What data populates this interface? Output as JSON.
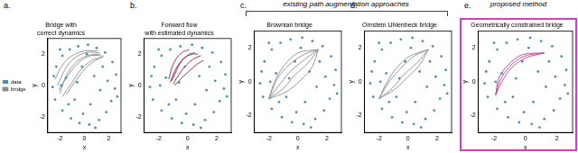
{
  "chart_data": [
    {
      "type": "scatter",
      "annotations": [
        "a."
      ],
      "title": [
        "Bridge with",
        "correct dynamics"
      ],
      "xlabel": "x",
      "ylabel": "y",
      "xlim": [
        -3,
        3
      ],
      "ylim": [
        -3,
        3
      ],
      "xticks": [
        -2,
        0,
        2
      ],
      "yticks": [
        -2,
        0,
        2
      ],
      "grid": false,
      "legend": "left",
      "series": [
        {
          "name": "data",
          "type": "scatter",
          "marker": "circle",
          "color": "#4a8fb8",
          "x": [
            -2.3,
            -1.8,
            -1.2,
            -0.5,
            0.3,
            1.0,
            1.7,
            2.3,
            2.6,
            2.5,
            2.2,
            1.8,
            1.2,
            0.4,
            -0.4,
            -1.1,
            -1.8,
            -2.4,
            -2.6,
            -2.5,
            -1.5,
            -0.8,
            0.5,
            1.3,
            0.8,
            -0.2,
            -1.3,
            1.9,
            -2.0,
            0.9,
            -0.1,
            1.5,
            -1.9,
            2.7,
            -0.6,
            0.2
          ],
          "values": [
            1.2,
            1.9,
            2.3,
            2.5,
            2.6,
            2.4,
            2.1,
            1.5,
            0.7,
            -0.2,
            -1.0,
            -1.7,
            -2.2,
            -2.5,
            -2.4,
            -2.1,
            -1.6,
            -0.9,
            -0.1,
            0.6,
            0.5,
            -0.9,
            -1.2,
            -0.3,
            0.6,
            1.2,
            -1.2,
            0.3,
            2.3,
            -2.7,
            -1.8,
            1.2,
            0.0,
            -0.7,
            0.2,
            2.0
          ]
        },
        {
          "name": "bridge",
          "type": "line",
          "color": "#8c8c8c",
          "x": [
            -2.0,
            -1.5,
            -0.8,
            0.2,
            1.3
          ],
          "values": [
            -0.5,
            0.6,
            1.4,
            1.9,
            2.0
          ]
        },
        {
          "type": "line",
          "color": "#8c8c8c",
          "x": [
            -2.2,
            -1.6,
            -0.9,
            0.1,
            1.2
          ],
          "values": [
            0.0,
            1.0,
            1.7,
            2.1,
            2.1
          ]
        },
        {
          "type": "line",
          "color": "#8c8c8c",
          "x": [
            -1.8,
            -1.0,
            -0.3,
            0.6,
            1.5
          ],
          "values": [
            -0.7,
            0.2,
            1.0,
            1.6,
            1.8
          ]
        },
        {
          "type": "line",
          "color": "#8c8c8c",
          "x": [
            -2.4,
            -1.8,
            -1.0,
            0.0,
            1.1
          ],
          "values": [
            0.4,
            1.3,
            1.9,
            2.2,
            2.2
          ]
        },
        {
          "type": "line",
          "color": "#8c8c8c",
          "x": [
            -1.5,
            -0.7,
            0.1,
            0.9,
            1.6
          ],
          "values": [
            -0.6,
            0.3,
            1.1,
            1.6,
            1.9
          ]
        },
        {
          "type": "line",
          "color": "#8c8c8c",
          "x": [
            -2.1,
            -1.2,
            -0.4,
            0.5,
            1.4
          ],
          "values": [
            -0.3,
            0.8,
            1.5,
            1.9,
            1.9
          ]
        }
      ]
    },
    {
      "type": "scatter",
      "annotations": [
        "b."
      ],
      "title": [
        "Forward flow",
        "with estimated dynamics"
      ],
      "xlabel": "x",
      "ylabel": "y",
      "xlim": [
        -3,
        3
      ],
      "ylim": [
        -3,
        3
      ],
      "xticks": [
        -2,
        0,
        2
      ],
      "yticks": [
        -2,
        0,
        2
      ],
      "grid": false,
      "series": [
        {
          "type": "scatter",
          "marker": "circle",
          "color": "#4a8fb8",
          "x": [
            -2.3,
            -1.8,
            -1.2,
            -0.5,
            0.3,
            1.0,
            1.7,
            2.3,
            2.6,
            2.5,
            2.2,
            1.8,
            1.2,
            0.4,
            -0.4,
            -1.1,
            -1.8,
            -2.4,
            -2.6,
            -2.5,
            -1.5,
            -0.8,
            0.5,
            1.3,
            0.8,
            -0.2,
            -1.3,
            1.9,
            -2.0,
            0.9,
            -0.1,
            1.5,
            -1.9,
            2.7,
            -0.6,
            0.2
          ],
          "values": [
            1.2,
            1.9,
            2.3,
            2.5,
            2.6,
            2.4,
            2.1,
            1.5,
            0.7,
            -0.2,
            -1.0,
            -1.7,
            -2.2,
            -2.5,
            -2.4,
            -2.1,
            -1.6,
            -0.9,
            -0.1,
            0.6,
            0.5,
            -0.9,
            -1.2,
            -0.3,
            0.6,
            1.2,
            -1.2,
            0.3,
            2.3,
            -2.7,
            -1.8,
            1.2,
            0.0,
            -0.7,
            0.2,
            2.0
          ]
        },
        {
          "type": "line",
          "color": "#8e1f45",
          "x": [
            -1.2,
            -0.9,
            -0.5,
            0.0,
            0.5
          ],
          "values": [
            0.2,
            0.9,
            1.5,
            1.9,
            2.1
          ]
        },
        {
          "type": "line",
          "color": "#8e1f45",
          "x": [
            -1.0,
            -0.6,
            -0.1,
            0.4,
            0.9
          ],
          "values": [
            0.1,
            0.7,
            1.3,
            1.7,
            1.9
          ]
        },
        {
          "type": "line",
          "color": "#8e1f45",
          "x": [
            -1.3,
            -1.1,
            -0.8,
            -0.4,
            0.1
          ],
          "values": [
            0.4,
            1.1,
            1.7,
            2.1,
            2.3
          ]
        },
        {
          "type": "line",
          "color": "#8e1f45",
          "x": [
            -0.9,
            -0.4,
            0.2,
            0.7,
            1.1
          ],
          "values": [
            0.0,
            0.5,
            1.0,
            1.4,
            1.6
          ]
        },
        {
          "type": "line",
          "color": "#8e1f45",
          "x": [
            -1.1,
            -0.7,
            -0.3,
            0.2,
            0.7
          ],
          "values": [
            0.3,
            1.1,
            1.7,
            2.0,
            2.0
          ]
        }
      ]
    },
    {
      "type": "scatter",
      "annotations": [
        "c."
      ],
      "title": "Brownian bridge",
      "xlabel": "x",
      "ylabel": "y",
      "xlim": [
        -3,
        3
      ],
      "ylim": [
        -3,
        3
      ],
      "xticks": [
        -2,
        0,
        2
      ],
      "yticks": [
        -2,
        0,
        2
      ],
      "grid": false,
      "series": [
        {
          "type": "scatter",
          "marker": "circle",
          "color": "#4a8fb8",
          "x": [
            -2.3,
            -1.8,
            -1.2,
            -0.5,
            0.3,
            1.0,
            1.7,
            2.3,
            2.6,
            2.5,
            2.2,
            1.8,
            1.2,
            0.4,
            -0.4,
            -1.1,
            -1.8,
            -2.4,
            -2.6,
            -2.5,
            -1.5,
            -0.8,
            0.5,
            1.3,
            0.8,
            -0.2,
            -1.3,
            1.9,
            -2.0,
            0.9,
            -0.1,
            1.5,
            -1.9,
            2.7,
            -0.6,
            0.2
          ],
          "values": [
            1.2,
            1.9,
            2.3,
            2.5,
            2.6,
            2.4,
            2.1,
            1.5,
            0.7,
            -0.2,
            -1.0,
            -1.7,
            -2.2,
            -2.5,
            -2.4,
            -2.1,
            -1.6,
            -0.9,
            -0.1,
            0.6,
            0.5,
            -0.9,
            -1.2,
            -0.3,
            0.6,
            1.2,
            -1.2,
            0.3,
            2.3,
            -2.7,
            -1.8,
            1.2,
            0.0,
            -0.7,
            0.2,
            2.0
          ]
        },
        {
          "type": "line",
          "color": "#8c8c8c",
          "x": [
            -2.0,
            -1.4,
            -0.6,
            0.4,
            1.4
          ],
          "values": [
            -1.0,
            0.2,
            1.0,
            1.6,
            1.9
          ]
        },
        {
          "type": "line",
          "color": "#8c8c8c",
          "x": [
            -2.0,
            -1.0,
            -0.2,
            0.7,
            1.4
          ],
          "values": [
            -1.0,
            -0.4,
            0.4,
            1.1,
            1.9
          ]
        },
        {
          "type": "line",
          "color": "#8c8c8c",
          "x": [
            -2.0,
            -1.6,
            -1.0,
            0.0,
            1.4
          ],
          "values": [
            -1.0,
            0.0,
            0.9,
            1.7,
            1.9
          ]
        },
        {
          "type": "line",
          "color": "#8c8c8c",
          "x": [
            -2.0,
            -0.8,
            0.2,
            1.0,
            1.4
          ],
          "values": [
            -1.0,
            -0.6,
            0.1,
            0.9,
            1.9
          ]
        },
        {
          "type": "line",
          "color": "#8c8c8c",
          "x": [
            -2.0,
            -1.2,
            -0.4,
            0.6,
            1.4
          ],
          "values": [
            -1.0,
            -0.1,
            0.7,
            1.4,
            1.9
          ]
        }
      ]
    },
    {
      "type": "scatter",
      "annotations": [
        "d."
      ],
      "title": "Ornstein Uhlenbeck bridge",
      "xlabel": "x",
      "ylabel": "y",
      "xlim": [
        -3,
        3
      ],
      "ylim": [
        -3,
        3
      ],
      "xticks": [
        -2,
        0,
        2
      ],
      "yticks": [
        -2,
        0,
        2
      ],
      "grid": false,
      "series": [
        {
          "type": "scatter",
          "marker": "circle",
          "color": "#4a8fb8",
          "x": [
            -2.3,
            -1.8,
            -1.2,
            -0.5,
            0.3,
            1.0,
            1.7,
            2.3,
            2.6,
            2.5,
            2.2,
            1.8,
            1.2,
            0.4,
            -0.4,
            -1.1,
            -1.8,
            -2.4,
            -2.6,
            -2.5,
            -1.5,
            -0.8,
            0.5,
            1.3,
            0.8,
            -0.2,
            -1.3,
            1.9,
            -2.0,
            0.9,
            -0.1,
            1.5,
            -1.9,
            2.7,
            -0.6,
            0.2
          ],
          "values": [
            1.2,
            1.9,
            2.3,
            2.5,
            2.6,
            2.4,
            2.1,
            1.5,
            0.7,
            -0.2,
            -1.0,
            -1.7,
            -2.2,
            -2.5,
            -2.4,
            -2.1,
            -1.6,
            -0.9,
            -0.1,
            0.6,
            0.5,
            -0.9,
            -1.2,
            -0.3,
            0.6,
            1.2,
            -1.2,
            0.3,
            2.3,
            -2.7,
            -1.8,
            1.2,
            0.0,
            -0.7,
            0.2,
            2.0
          ]
        },
        {
          "type": "line",
          "color": "#8c8c8c",
          "x": [
            -2.0,
            -1.3,
            -0.5,
            0.4,
            1.4
          ],
          "values": [
            -1.0,
            0.0,
            0.8,
            1.5,
            1.9
          ]
        },
        {
          "type": "line",
          "color": "#8c8c8c",
          "x": [
            -2.0,
            -1.1,
            -0.3,
            0.6,
            1.4
          ],
          "values": [
            -1.0,
            -0.4,
            0.4,
            1.1,
            1.9
          ]
        },
        {
          "type": "line",
          "color": "#8c8c8c",
          "x": [
            -2.0,
            -1.5,
            -0.8,
            0.1,
            1.4
          ],
          "values": [
            -1.0,
            -0.1,
            0.8,
            1.5,
            1.9
          ]
        },
        {
          "type": "line",
          "color": "#8c8c8c",
          "x": [
            -2.0,
            -1.0,
            -0.1,
            0.8,
            1.4
          ],
          "values": [
            -1.0,
            -0.5,
            0.2,
            1.0,
            1.9
          ]
        }
      ]
    },
    {
      "type": "scatter",
      "annotations": [
        "e."
      ],
      "title": "Geometrically constrained bridge",
      "xlabel": "x",
      "ylabel": "y",
      "xlim": [
        -3,
        3
      ],
      "ylim": [
        -3,
        3
      ],
      "xticks": [
        -2,
        0,
        2
      ],
      "yticks": [
        -2,
        0,
        2
      ],
      "grid": false,
      "series": [
        {
          "type": "scatter",
          "marker": "circle",
          "color": "#4a8fb8",
          "x": [
            -2.3,
            -1.8,
            -1.2,
            -0.5,
            0.3,
            1.0,
            1.7,
            2.3,
            2.6,
            2.5,
            2.2,
            1.8,
            1.2,
            0.4,
            -0.4,
            -1.1,
            -1.8,
            -2.4,
            -2.6,
            -2.5,
            -1.5,
            -0.8,
            0.5,
            1.3,
            0.8,
            -0.2,
            -1.3,
            1.9,
            -2.0,
            0.9,
            -0.1,
            1.5,
            -1.9,
            2.7,
            -0.6,
            0.2
          ],
          "values": [
            1.2,
            1.9,
            2.3,
            2.5,
            2.6,
            2.4,
            2.1,
            1.5,
            0.7,
            -0.2,
            -1.0,
            -1.7,
            -2.2,
            -2.5,
            -2.4,
            -2.1,
            -1.6,
            -0.9,
            -0.1,
            0.6,
            0.5,
            -0.9,
            -1.2,
            -0.3,
            0.6,
            1.2,
            -1.2,
            0.3,
            2.3,
            -2.7,
            -1.8,
            1.2,
            0.0,
            -0.7,
            0.2,
            2.0
          ]
        },
        {
          "type": "line",
          "color": "#c0408f",
          "x": [
            -1.9,
            -1.6,
            -1.0,
            -0.1,
            1.2
          ],
          "values": [
            -0.8,
            0.1,
            0.9,
            1.5,
            1.7
          ]
        },
        {
          "type": "line",
          "color": "#c0408f",
          "x": [
            -1.9,
            -1.5,
            -0.9,
            0.0,
            1.2
          ],
          "values": [
            -0.8,
            0.0,
            0.8,
            1.4,
            1.7
          ]
        },
        {
          "type": "line",
          "color": "#c0408f",
          "x": [
            -1.9,
            -1.7,
            -1.1,
            -0.2,
            1.2
          ],
          "values": [
            -0.8,
            0.2,
            1.0,
            1.6,
            1.7
          ]
        }
      ]
    }
  ],
  "groups": [
    {
      "label": "existing path augmentation approaches",
      "panels": [
        "c.",
        "d."
      ]
    },
    {
      "label": "proposed method",
      "panels": [
        "e."
      ]
    }
  ]
}
